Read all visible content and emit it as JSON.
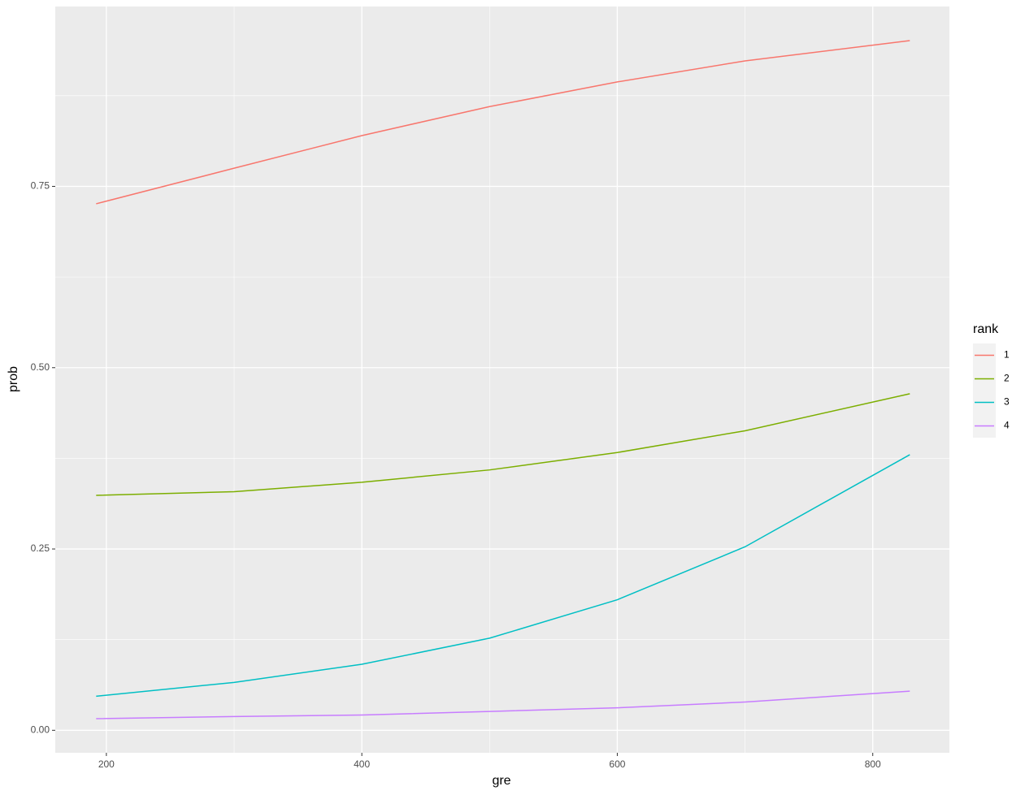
{
  "chart_data": {
    "type": "line",
    "x_label": "gre",
    "y_label": "prob",
    "x": [
      192,
      300,
      400,
      500,
      600,
      700,
      829
    ],
    "series": [
      {
        "name": "1",
        "color": "#f8766d",
        "values": [
          0.726,
          0.775,
          0.82,
          0.86,
          0.894,
          0.923,
          0.951
        ]
      },
      {
        "name": "2",
        "color": "#7cae00",
        "values": [
          0.324,
          0.329,
          0.342,
          0.359,
          0.383,
          0.413,
          0.464
        ]
      },
      {
        "name": "3",
        "color": "#00bfc4",
        "values": [
          0.047,
          0.066,
          0.091,
          0.127,
          0.18,
          0.253,
          0.38
        ]
      },
      {
        "name": "4",
        "color": "#c77cff",
        "values": [
          0.016,
          0.019,
          0.021,
          0.026,
          0.031,
          0.039,
          0.054
        ]
      }
    ],
    "legend_title": "rank",
    "legend_position": "right",
    "xlim": [
      160,
      860
    ],
    "ylim": [
      -0.031,
      0.998
    ],
    "xticks": [
      200,
      400,
      600,
      800
    ],
    "yticks": [
      {
        "value": 0,
        "label": "0.00"
      },
      {
        "value": 0.25,
        "label": "0.25"
      },
      {
        "value": 0.5,
        "label": "0.50"
      },
      {
        "value": 0.75,
        "label": "0.75"
      }
    ],
    "x_minor_grid": [
      300,
      500,
      700
    ],
    "y_minor_grid": [
      0.125,
      0.375,
      0.625,
      0.875
    ],
    "grid": true
  }
}
